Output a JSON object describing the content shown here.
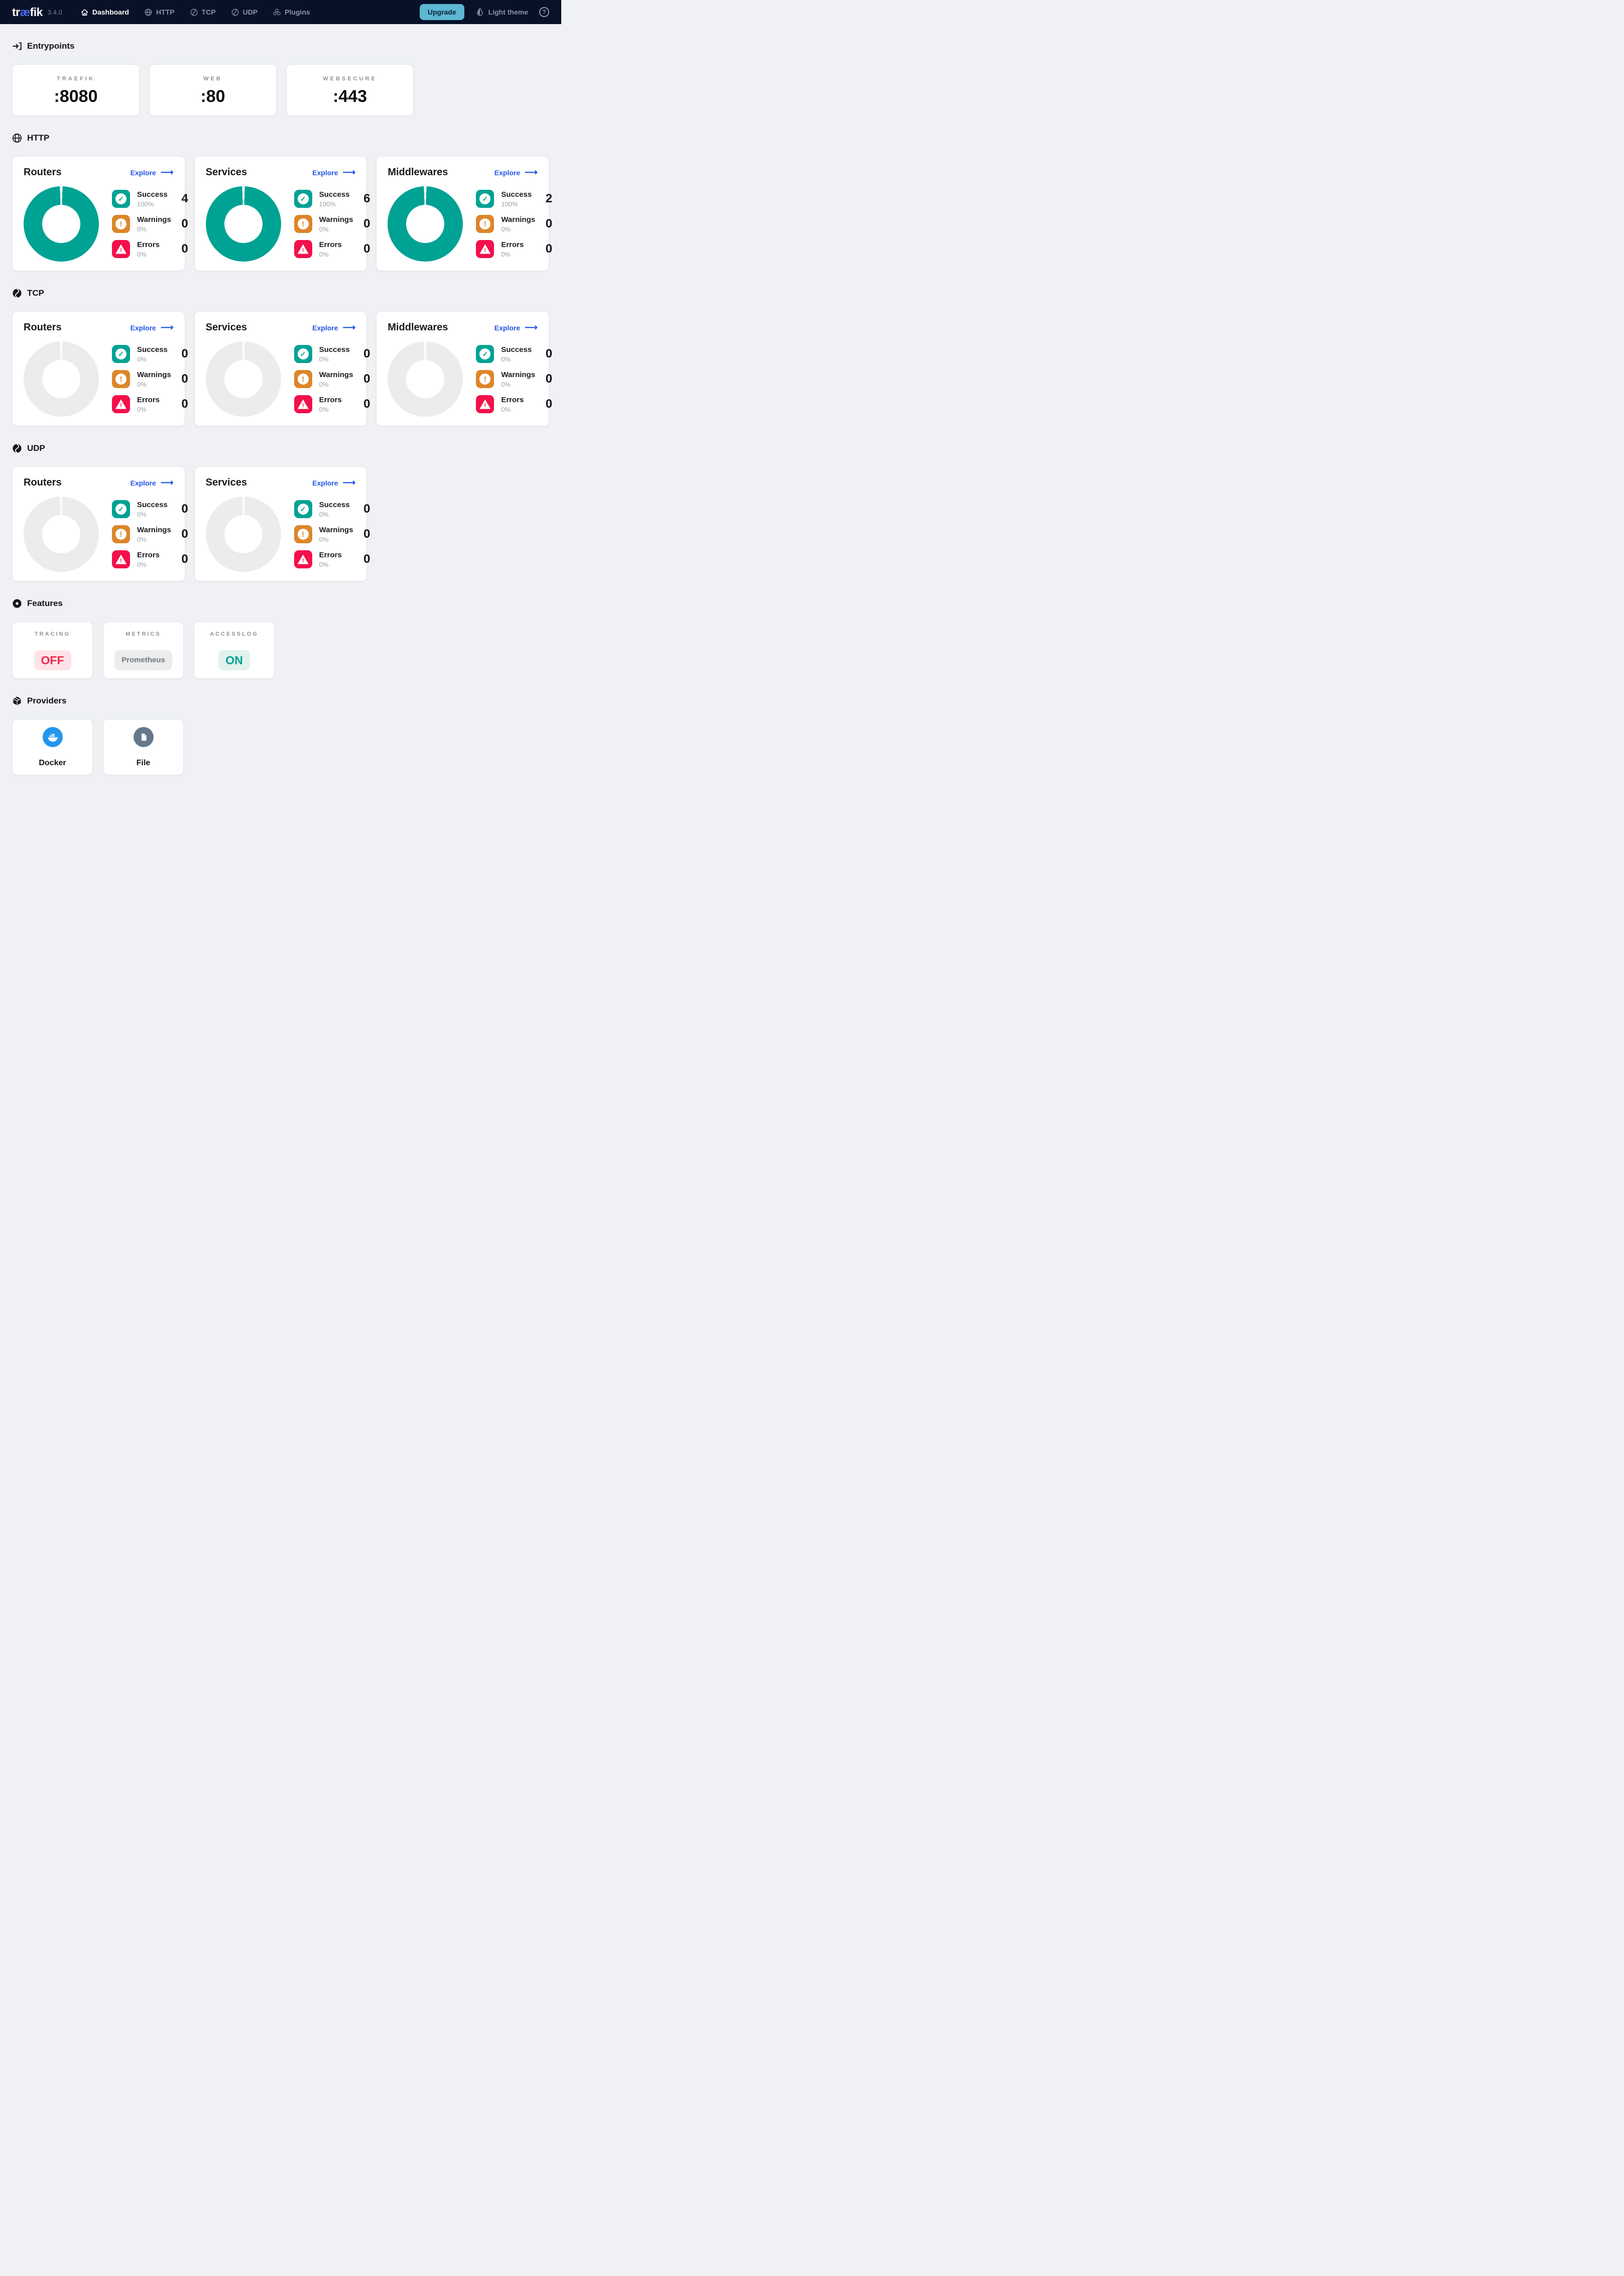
{
  "colors": {
    "navbar_bg": "#081127",
    "page_bg": "#eff1f4",
    "accent_teal": "#00a294",
    "warning_orange": "#dd8629",
    "error_red": "#f4104a",
    "link_blue": "#2356e6",
    "upgrade_bg": "#5bb7d2",
    "upgrade_text": "#0c2137",
    "logo_ae_blue": "#4d6bf5",
    "donut_empty": "#ececec",
    "docker_blue": "#2496ed",
    "file_slate": "#66798a",
    "off_red": "#f0284a",
    "off_bg": "#fde3e8",
    "on_bg": "#e1f1ee",
    "neutral_text": "#6f7780",
    "neutral_bg": "#ececec"
  },
  "navbar": {
    "logo": {
      "pre": "tr",
      "mid": "æ",
      "post": "fik"
    },
    "version": "3.4.0",
    "items": [
      {
        "label": "Dashboard",
        "icon": "home-icon",
        "active": true
      },
      {
        "label": "HTTP",
        "icon": "globe-icon",
        "active": false
      },
      {
        "label": "TCP",
        "icon": "protocol-icon",
        "active": false
      },
      {
        "label": "UDP",
        "icon": "protocol-icon",
        "active": false
      },
      {
        "label": "Plugins",
        "icon": "plugins-icon",
        "active": false
      }
    ],
    "upgrade_label": "Upgrade",
    "theme_label": "Light theme"
  },
  "entrypoints": {
    "title": "Entrypoints",
    "icon": "login-arrow-icon",
    "cards": [
      {
        "name": "TRAEFIK",
        "port": ":8080"
      },
      {
        "name": "WEB",
        "port": ":80"
      },
      {
        "name": "WEBSECURE",
        "port": ":443"
      }
    ]
  },
  "stat_sections": [
    {
      "id": "http",
      "title": "HTTP",
      "icon": "globe-section-icon",
      "cards": [
        {
          "title": "Routers",
          "explore": "Explore",
          "donut_filled": true,
          "rows": [
            {
              "kind": "success",
              "label": "Success",
              "percent": "100%",
              "count": "4"
            },
            {
              "kind": "warning",
              "label": "Warnings",
              "percent": "0%",
              "count": "0"
            },
            {
              "kind": "error",
              "label": "Errors",
              "percent": "0%",
              "count": "0"
            }
          ]
        },
        {
          "title": "Services",
          "explore": "Explore",
          "donut_filled": true,
          "rows": [
            {
              "kind": "success",
              "label": "Success",
              "percent": "100%",
              "count": "6"
            },
            {
              "kind": "warning",
              "label": "Warnings",
              "percent": "0%",
              "count": "0"
            },
            {
              "kind": "error",
              "label": "Errors",
              "percent": "0%",
              "count": "0"
            }
          ]
        },
        {
          "title": "Middlewares",
          "explore": "Explore",
          "donut_filled": true,
          "rows": [
            {
              "kind": "success",
              "label": "Success",
              "percent": "100%",
              "count": "2"
            },
            {
              "kind": "warning",
              "label": "Warnings",
              "percent": "0%",
              "count": "0"
            },
            {
              "kind": "error",
              "label": "Errors",
              "percent": "0%",
              "count": "0"
            }
          ]
        }
      ]
    },
    {
      "id": "tcp",
      "title": "TCP",
      "icon": "protocol-section-icon",
      "cards": [
        {
          "title": "Routers",
          "explore": "Explore",
          "donut_filled": false,
          "rows": [
            {
              "kind": "success",
              "label": "Success",
              "percent": "0%",
              "count": "0"
            },
            {
              "kind": "warning",
              "label": "Warnings",
              "percent": "0%",
              "count": "0"
            },
            {
              "kind": "error",
              "label": "Errors",
              "percent": "0%",
              "count": "0"
            }
          ]
        },
        {
          "title": "Services",
          "explore": "Explore",
          "donut_filled": false,
          "rows": [
            {
              "kind": "success",
              "label": "Success",
              "percent": "0%",
              "count": "0"
            },
            {
              "kind": "warning",
              "label": "Warnings",
              "percent": "0%",
              "count": "0"
            },
            {
              "kind": "error",
              "label": "Errors",
              "percent": "0%",
              "count": "0"
            }
          ]
        },
        {
          "title": "Middlewares",
          "explore": "Explore",
          "donut_filled": false,
          "rows": [
            {
              "kind": "success",
              "label": "Success",
              "percent": "0%",
              "count": "0"
            },
            {
              "kind": "warning",
              "label": "Warnings",
              "percent": "0%",
              "count": "0"
            },
            {
              "kind": "error",
              "label": "Errors",
              "percent": "0%",
              "count": "0"
            }
          ]
        }
      ]
    },
    {
      "id": "udp",
      "title": "UDP",
      "icon": "protocol-section-icon",
      "cards": [
        {
          "title": "Routers",
          "explore": "Explore",
          "donut_filled": false,
          "rows": [
            {
              "kind": "success",
              "label": "Success",
              "percent": "0%",
              "count": "0"
            },
            {
              "kind": "warning",
              "label": "Warnings",
              "percent": "0%",
              "count": "0"
            },
            {
              "kind": "error",
              "label": "Errors",
              "percent": "0%",
              "count": "0"
            }
          ]
        },
        {
          "title": "Services",
          "explore": "Explore",
          "donut_filled": false,
          "rows": [
            {
              "kind": "success",
              "label": "Success",
              "percent": "0%",
              "count": "0"
            },
            {
              "kind": "warning",
              "label": "Warnings",
              "percent": "0%",
              "count": "0"
            },
            {
              "kind": "error",
              "label": "Errors",
              "percent": "0%",
              "count": "0"
            }
          ]
        }
      ]
    }
  ],
  "features": {
    "title": "Features",
    "icon": "features-icon",
    "cards": [
      {
        "name": "TRACING",
        "value": "OFF",
        "state": "off"
      },
      {
        "name": "METRICS",
        "value": "Prometheus",
        "state": "neutral"
      },
      {
        "name": "ACCESSLOG",
        "value": "ON",
        "state": "on"
      }
    ]
  },
  "providers": {
    "title": "Providers",
    "icon": "box-icon",
    "cards": [
      {
        "name": "Docker",
        "icon": "docker-icon"
      },
      {
        "name": "File",
        "icon": "file-icon"
      }
    ]
  },
  "chart_data": [
    {
      "type": "pie",
      "title": "HTTP Routers",
      "labels": [
        "Success",
        "Warnings",
        "Errors"
      ],
      "percentages": [
        100,
        0,
        0
      ],
      "counts": [
        4,
        0,
        0
      ],
      "colors": [
        "#00a294",
        "#dd8629",
        "#f4104a"
      ]
    },
    {
      "type": "pie",
      "title": "HTTP Services",
      "labels": [
        "Success",
        "Warnings",
        "Errors"
      ],
      "percentages": [
        100,
        0,
        0
      ],
      "counts": [
        6,
        0,
        0
      ],
      "colors": [
        "#00a294",
        "#dd8629",
        "#f4104a"
      ]
    },
    {
      "type": "pie",
      "title": "HTTP Middlewares",
      "labels": [
        "Success",
        "Warnings",
        "Errors"
      ],
      "percentages": [
        100,
        0,
        0
      ],
      "counts": [
        2,
        0,
        0
      ],
      "colors": [
        "#00a294",
        "#dd8629",
        "#f4104a"
      ]
    },
    {
      "type": "pie",
      "title": "TCP Routers",
      "labels": [
        "Success",
        "Warnings",
        "Errors"
      ],
      "percentages": [
        0,
        0,
        0
      ],
      "counts": [
        0,
        0,
        0
      ],
      "colors": [
        "#00a294",
        "#dd8629",
        "#f4104a"
      ]
    },
    {
      "type": "pie",
      "title": "TCP Services",
      "labels": [
        "Success",
        "Warnings",
        "Errors"
      ],
      "percentages": [
        0,
        0,
        0
      ],
      "counts": [
        0,
        0,
        0
      ],
      "colors": [
        "#00a294",
        "#dd8629",
        "#f4104a"
      ]
    },
    {
      "type": "pie",
      "title": "TCP Middlewares",
      "labels": [
        "Success",
        "Warnings",
        "Errors"
      ],
      "percentages": [
        0,
        0,
        0
      ],
      "counts": [
        0,
        0,
        0
      ],
      "colors": [
        "#00a294",
        "#dd8629",
        "#f4104a"
      ]
    },
    {
      "type": "pie",
      "title": "UDP Routers",
      "labels": [
        "Success",
        "Warnings",
        "Errors"
      ],
      "percentages": [
        0,
        0,
        0
      ],
      "counts": [
        0,
        0,
        0
      ],
      "colors": [
        "#00a294",
        "#dd8629",
        "#f4104a"
      ]
    },
    {
      "type": "pie",
      "title": "UDP Services",
      "labels": [
        "Success",
        "Warnings",
        "Errors"
      ],
      "percentages": [
        0,
        0,
        0
      ],
      "counts": [
        0,
        0,
        0
      ],
      "colors": [
        "#00a294",
        "#dd8629",
        "#f4104a"
      ]
    }
  ]
}
